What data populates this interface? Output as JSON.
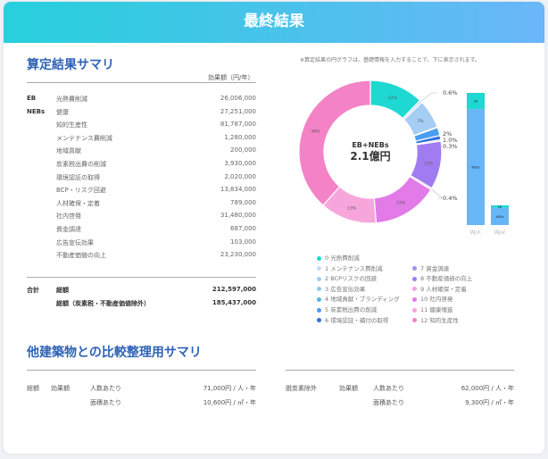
{
  "header": {
    "title": "最終結果"
  },
  "summary": {
    "title": "算定結果サマリ",
    "column_header": "効果額（円/年）",
    "groups": {
      "eb": "EB",
      "nebs": "NEBs",
      "total": "合計"
    },
    "rows": [
      {
        "name": "光熱費削減",
        "value": "26,006,000"
      },
      {
        "name": "健康",
        "value": "27,251,000"
      },
      {
        "name": "知的生産性",
        "value": "81,787,000"
      },
      {
        "name": "メンテナンス費削減",
        "value": "1,280,000"
      },
      {
        "name": "地域貢献",
        "value": "200,000"
      },
      {
        "name": "炭素税出費の削減",
        "value": "3,930,000"
      },
      {
        "name": "環境認証の取得",
        "value": "2,020,000"
      },
      {
        "name": "BCP・リスク回避",
        "value": "13,834,000"
      },
      {
        "name": "人材確保・定着",
        "value": "789,000"
      },
      {
        "name": "社内啓発",
        "value": "31,480,000"
      },
      {
        "name": "資金調達",
        "value": "687,000"
      },
      {
        "name": "広告宣伝効果",
        "value": "103,000"
      },
      {
        "name": "不動産価値の向上",
        "value": "23,230,000"
      }
    ],
    "totals": [
      {
        "name": "総額",
        "value": "212,597,000"
      },
      {
        "name": "総額（炭素税・不動産価値除外）",
        "value": "185,437,000"
      }
    ]
  },
  "chart_note": "※算定結果の円グラフは、基礎情報を入力することで、下に表示されます。",
  "chart_data": [
    {
      "type": "pie",
      "center_label": "EB+NEBs",
      "center_value": "2.1億円",
      "slices": [
        {
          "name": "0 光熱費削減",
          "value": 26006000,
          "label": "12%",
          "color": "#1ed8d2"
        },
        {
          "name": "1 メンテナンス費削減",
          "value": 1280000,
          "label": "0.6%",
          "color": "#c6def7"
        },
        {
          "name": "2 BCPリスクの回避",
          "value": 13834000,
          "label": "7%",
          "color": "#a6cdf3"
        },
        {
          "name": "3 広告宣伝効果",
          "value": 103000,
          "label": "",
          "color": "#8ccaf0"
        },
        {
          "name": "4 地域貢献・ブランディング",
          "value": 200000,
          "label": "",
          "color": "#55b4ea"
        },
        {
          "name": "5 炭素税出費の削減",
          "value": 3930000,
          "label": "2%",
          "color": "#4a9cf0"
        },
        {
          "name": "6 環境認証・補付の取得",
          "value": 2020000,
          "label": "1.0%",
          "color": "#2f6fe0"
        },
        {
          "name": "7 資金調達",
          "value": 687000,
          "label": "0.3%",
          "color": "#a68ef2"
        },
        {
          "name": "8 不動産価値の向上",
          "value": 23230000,
          "label": "11%",
          "color": "#a07cf0"
        },
        {
          "name": "9 人材確保・定着",
          "value": 789000,
          "label": "0.4%",
          "color": "#f3a2ef"
        },
        {
          "name": "10 社内啓発",
          "value": 31480000,
          "label": "15%",
          "color": "#e27ae8"
        },
        {
          "name": "11 健康増進",
          "value": 27251000,
          "label": "13%",
          "color": "#f7a6dc"
        },
        {
          "name": "12 知的生産性",
          "value": 81787000,
          "label": "38%",
          "color": "#f482c6"
        }
      ]
    },
    {
      "type": "bar",
      "stacked": true,
      "categories": [
        "円/人",
        "円/㎡"
      ],
      "series": [
        {
          "name": "EB",
          "values": [
            8700,
            1300
          ],
          "color": "#1ed8d2"
        },
        {
          "name": "NEBs",
          "values": [
            62300,
            9300
          ],
          "color": "#66b6f8"
        }
      ]
    }
  ],
  "comparison": {
    "title": "他建築物との比較整理用サマリ",
    "left": {
      "group": "総額",
      "kind": "効果額",
      "rows": [
        {
          "label": "人数あたり",
          "value": "71,000円 / 人・年"
        },
        {
          "label": "面積あたり",
          "value": "10,600円 / ㎡・年"
        }
      ]
    },
    "right": {
      "group": "脱炭素除外",
      "kind": "効果額",
      "rows": [
        {
          "label": "人数あたり",
          "value": "62,000円 / 人・年"
        },
        {
          "label": "面積あたり",
          "value": "9,300円 / ㎡・年"
        }
      ]
    }
  }
}
